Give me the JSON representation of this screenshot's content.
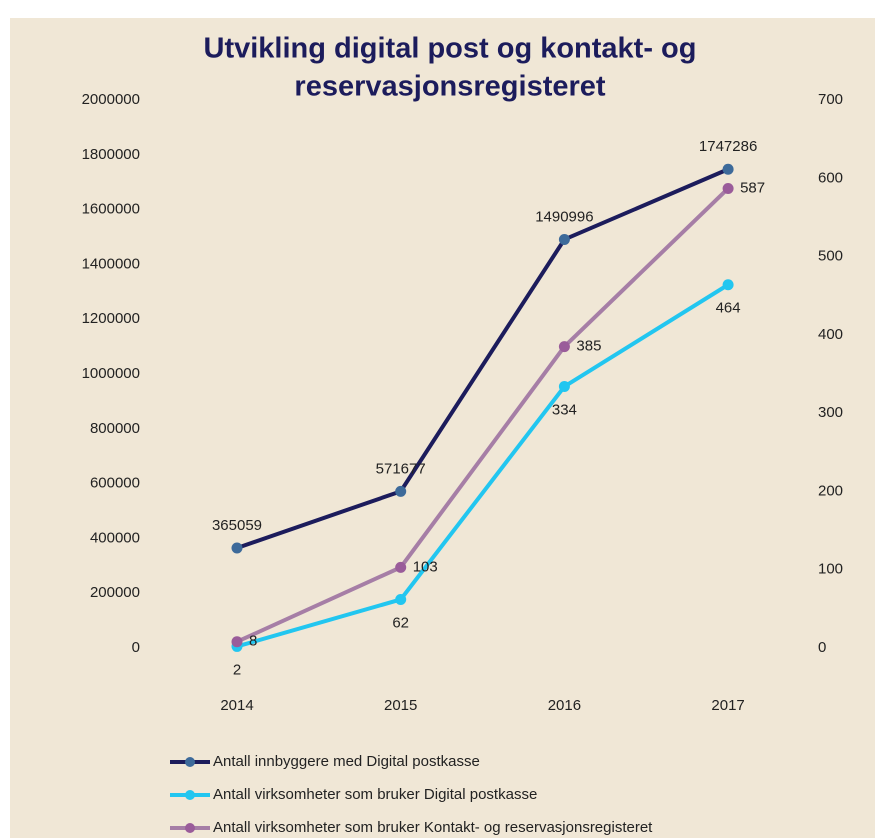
{
  "chart_data": {
    "type": "line",
    "title": [
      "Utvikling digital post og kontakt- og",
      "reservasjonsregisteret"
    ],
    "categories": [
      "2014",
      "2015",
      "2016",
      "2017"
    ],
    "series": [
      {
        "name": "Antall innbyggere med Digital postkasse",
        "color": "#1c1c5c",
        "marker": "#3d6a9a",
        "values": [
          365059,
          571677,
          1490996,
          1747286
        ]
      },
      {
        "name": "Antall virksomheter som bruker Digital postkasse",
        "color": "#22c6f0",
        "marker": "#22c6f0",
        "axis": "y2",
        "values": [
          2,
          62,
          334,
          464
        ]
      },
      {
        "name": "Antall virksomheter som bruker Kontakt- og reservasjonsregisteret",
        "color": "#a67ea6",
        "marker": "#9a5c9a",
        "axis": "y2",
        "values": [
          8,
          103,
          385,
          587
        ]
      }
    ],
    "ylim": [
      0,
      2000000
    ],
    "yticks": [
      0,
      200000,
      400000,
      600000,
      800000,
      1000000,
      1200000,
      1400000,
      1600000,
      1800000,
      2000000
    ],
    "y2lim": [
      0,
      700
    ],
    "y2ticks": [
      0,
      100,
      200,
      300,
      400,
      500,
      600,
      700
    ],
    "grid": false,
    "legend": "bottom"
  }
}
